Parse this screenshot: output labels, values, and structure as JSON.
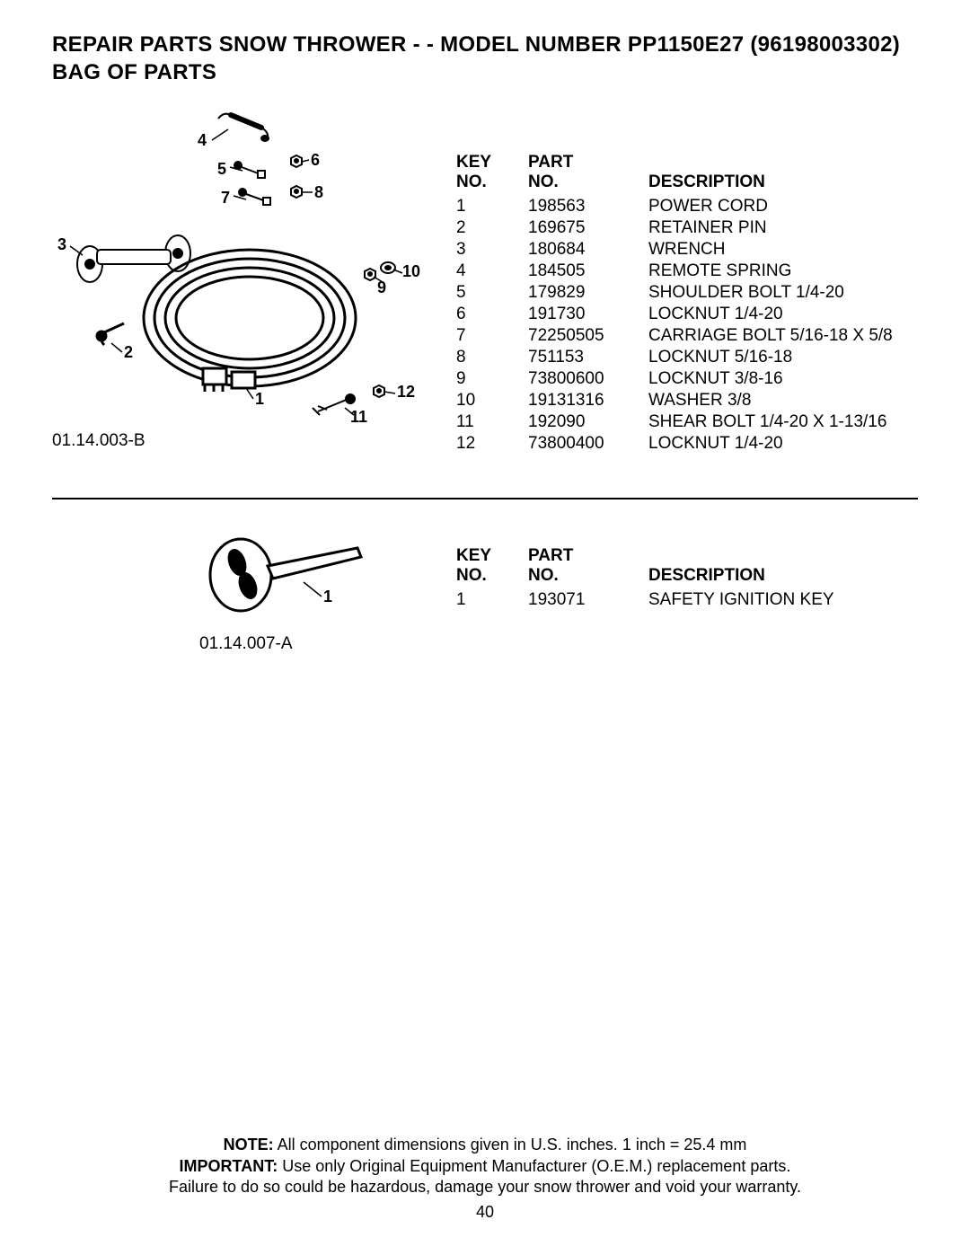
{
  "title_line1": "REPAIR PARTS  SNOW THROWER - - MODEL NUMBER  PP1150E27 (96198003302)",
  "title_line2": "BAG OF PARTS",
  "header_key": "KEY NO.",
  "header_part": "PART NO.",
  "header_desc": "DESCRIPTION",
  "diagram1_label": "01.14.003-B",
  "diagram2_label": "01.14.007-A",
  "table1": [
    {
      "key": "1",
      "part": "198563",
      "desc": "POWER CORD"
    },
    {
      "key": "2",
      "part": "169675",
      "desc": "RETAINER PIN"
    },
    {
      "key": "3",
      "part": "180684",
      "desc": "WRENCH"
    },
    {
      "key": "4",
      "part": "184505",
      "desc": "REMOTE SPRING"
    },
    {
      "key": "5",
      "part": "179829",
      "desc": "SHOULDER BOLT 1/4-20"
    },
    {
      "key": "6",
      "part": "191730",
      "desc": "LOCKNUT 1/4-20"
    },
    {
      "key": "7",
      "part": "72250505",
      "desc": "CARRIAGE BOLT 5/16-18 X 5/8"
    },
    {
      "key": "8",
      "part": "751153",
      "desc": "LOCKNUT 5/16-18"
    },
    {
      "key": "9",
      "part": "73800600",
      "desc": "LOCKNUT 3/8-16"
    },
    {
      "key": "10",
      "part": "19131316",
      "desc": "WASHER 3/8"
    },
    {
      "key": "11",
      "part": "192090",
      "desc": "SHEAR BOLT 1/4-20 X 1-13/16"
    },
    {
      "key": "12",
      "part": "73800400",
      "desc": "LOCKNUT 1/4-20"
    }
  ],
  "table2": [
    {
      "key": "1",
      "part": "193071",
      "desc": "SAFETY IGNITION KEY"
    }
  ],
  "callouts1": {
    "c1": "1",
    "c2": "2",
    "c3": "3",
    "c4": "4",
    "c5": "5",
    "c6": "6",
    "c7": "7",
    "c8": "8",
    "c9": "9",
    "c10": "10",
    "c11": "11",
    "c12": "12"
  },
  "callouts2": {
    "c1": "1"
  },
  "footer": {
    "note_label": "NOTE:",
    "note_text": "  All component dimensions given in U.S. inches.    1 inch = 25.4 mm",
    "imp_label": "IMPORTANT:",
    "imp_text": " Use only Original Equipment Manufacturer (O.E.M.) replacement parts.",
    "warn": "Failure to do so could be hazardous, damage your snow thrower and void your warranty.",
    "page": "40"
  }
}
